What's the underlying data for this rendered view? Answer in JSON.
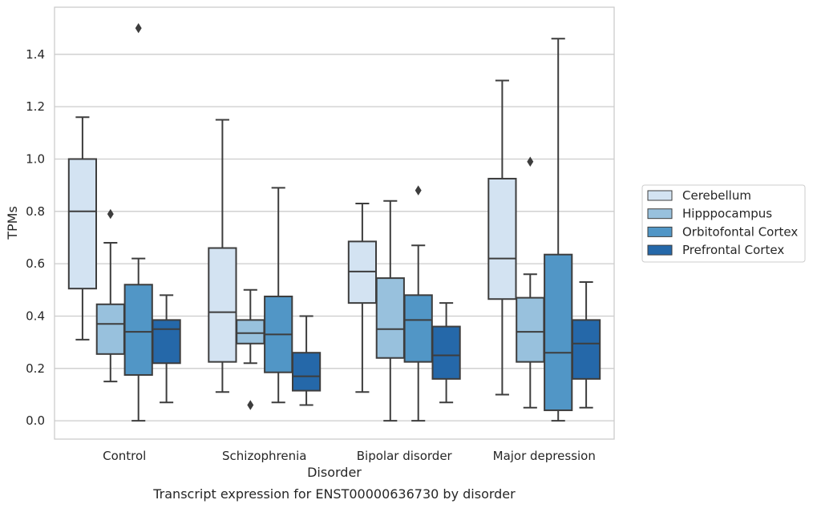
{
  "chart_data": {
    "type": "box",
    "title": "",
    "caption": "Transcript expression for ENST00000636730 by disorder",
    "xlabel": "Disorder",
    "ylabel": "TPMs",
    "ylim": [
      -0.07,
      1.58
    ],
    "yticks": [
      "0.0",
      "0.2",
      "0.4",
      "0.6",
      "0.8",
      "1.0",
      "1.2",
      "1.4"
    ],
    "grid": "horizontal",
    "legend_position": "right",
    "categories": [
      "Control",
      "Schizophrenia",
      "Bipolar disorder",
      "Major depression"
    ],
    "series": [
      {
        "name": "Cerebellum",
        "color": "#d3e3f2",
        "boxes": [
          {
            "whisker_low": 0.31,
            "q1": 0.505,
            "median": 0.8,
            "q3": 1.0,
            "whisker_high": 1.16,
            "outliers": []
          },
          {
            "whisker_low": 0.11,
            "q1": 0.225,
            "median": 0.415,
            "q3": 0.66,
            "whisker_high": 1.15,
            "outliers": []
          },
          {
            "whisker_low": 0.11,
            "q1": 0.45,
            "median": 0.57,
            "q3": 0.685,
            "whisker_high": 0.83,
            "outliers": []
          },
          {
            "whisker_low": 0.1,
            "q1": 0.465,
            "median": 0.62,
            "q3": 0.925,
            "whisker_high": 1.3,
            "outliers": []
          }
        ]
      },
      {
        "name": "Hipppocampus",
        "color": "#98c1dd",
        "boxes": [
          {
            "whisker_low": 0.15,
            "q1": 0.255,
            "median": 0.37,
            "q3": 0.445,
            "whisker_high": 0.68,
            "outliers": [
              0.79
            ]
          },
          {
            "whisker_low": 0.22,
            "q1": 0.295,
            "median": 0.335,
            "q3": 0.385,
            "whisker_high": 0.5,
            "outliers": [
              0.06
            ]
          },
          {
            "whisker_low": 0.0,
            "q1": 0.24,
            "median": 0.35,
            "q3": 0.545,
            "whisker_high": 0.84,
            "outliers": []
          },
          {
            "whisker_low": 0.05,
            "q1": 0.225,
            "median": 0.34,
            "q3": 0.47,
            "whisker_high": 0.56,
            "outliers": [
              0.99
            ]
          }
        ]
      },
      {
        "name": "Orbitofontal Cortex",
        "color": "#5196c6",
        "boxes": [
          {
            "whisker_low": 0.0,
            "q1": 0.175,
            "median": 0.34,
            "q3": 0.52,
            "whisker_high": 0.62,
            "outliers": [
              1.5
            ]
          },
          {
            "whisker_low": 0.07,
            "q1": 0.185,
            "median": 0.33,
            "q3": 0.475,
            "whisker_high": 0.89,
            "outliers": []
          },
          {
            "whisker_low": 0.0,
            "q1": 0.225,
            "median": 0.385,
            "q3": 0.48,
            "whisker_high": 0.67,
            "outliers": [
              0.88
            ]
          },
          {
            "whisker_low": 0.0,
            "q1": 0.04,
            "median": 0.26,
            "q3": 0.635,
            "whisker_high": 1.46,
            "outliers": []
          }
        ]
      },
      {
        "name": "Prefrontal Cortex",
        "color": "#2568a9",
        "boxes": [
          {
            "whisker_low": 0.07,
            "q1": 0.22,
            "median": 0.35,
            "q3": 0.385,
            "whisker_high": 0.48,
            "outliers": []
          },
          {
            "whisker_low": 0.06,
            "q1": 0.115,
            "median": 0.17,
            "q3": 0.26,
            "whisker_high": 0.4,
            "outliers": []
          },
          {
            "whisker_low": 0.07,
            "q1": 0.16,
            "median": 0.25,
            "q3": 0.36,
            "whisker_high": 0.45,
            "outliers": []
          },
          {
            "whisker_low": 0.05,
            "q1": 0.16,
            "median": 0.295,
            "q3": 0.385,
            "whisker_high": 0.53,
            "outliers": []
          }
        ]
      }
    ],
    "colors": {
      "box_edge": "#3d3d3d",
      "grid": "#cccccc",
      "frame": "#cccccc",
      "text": "#262626"
    }
  }
}
